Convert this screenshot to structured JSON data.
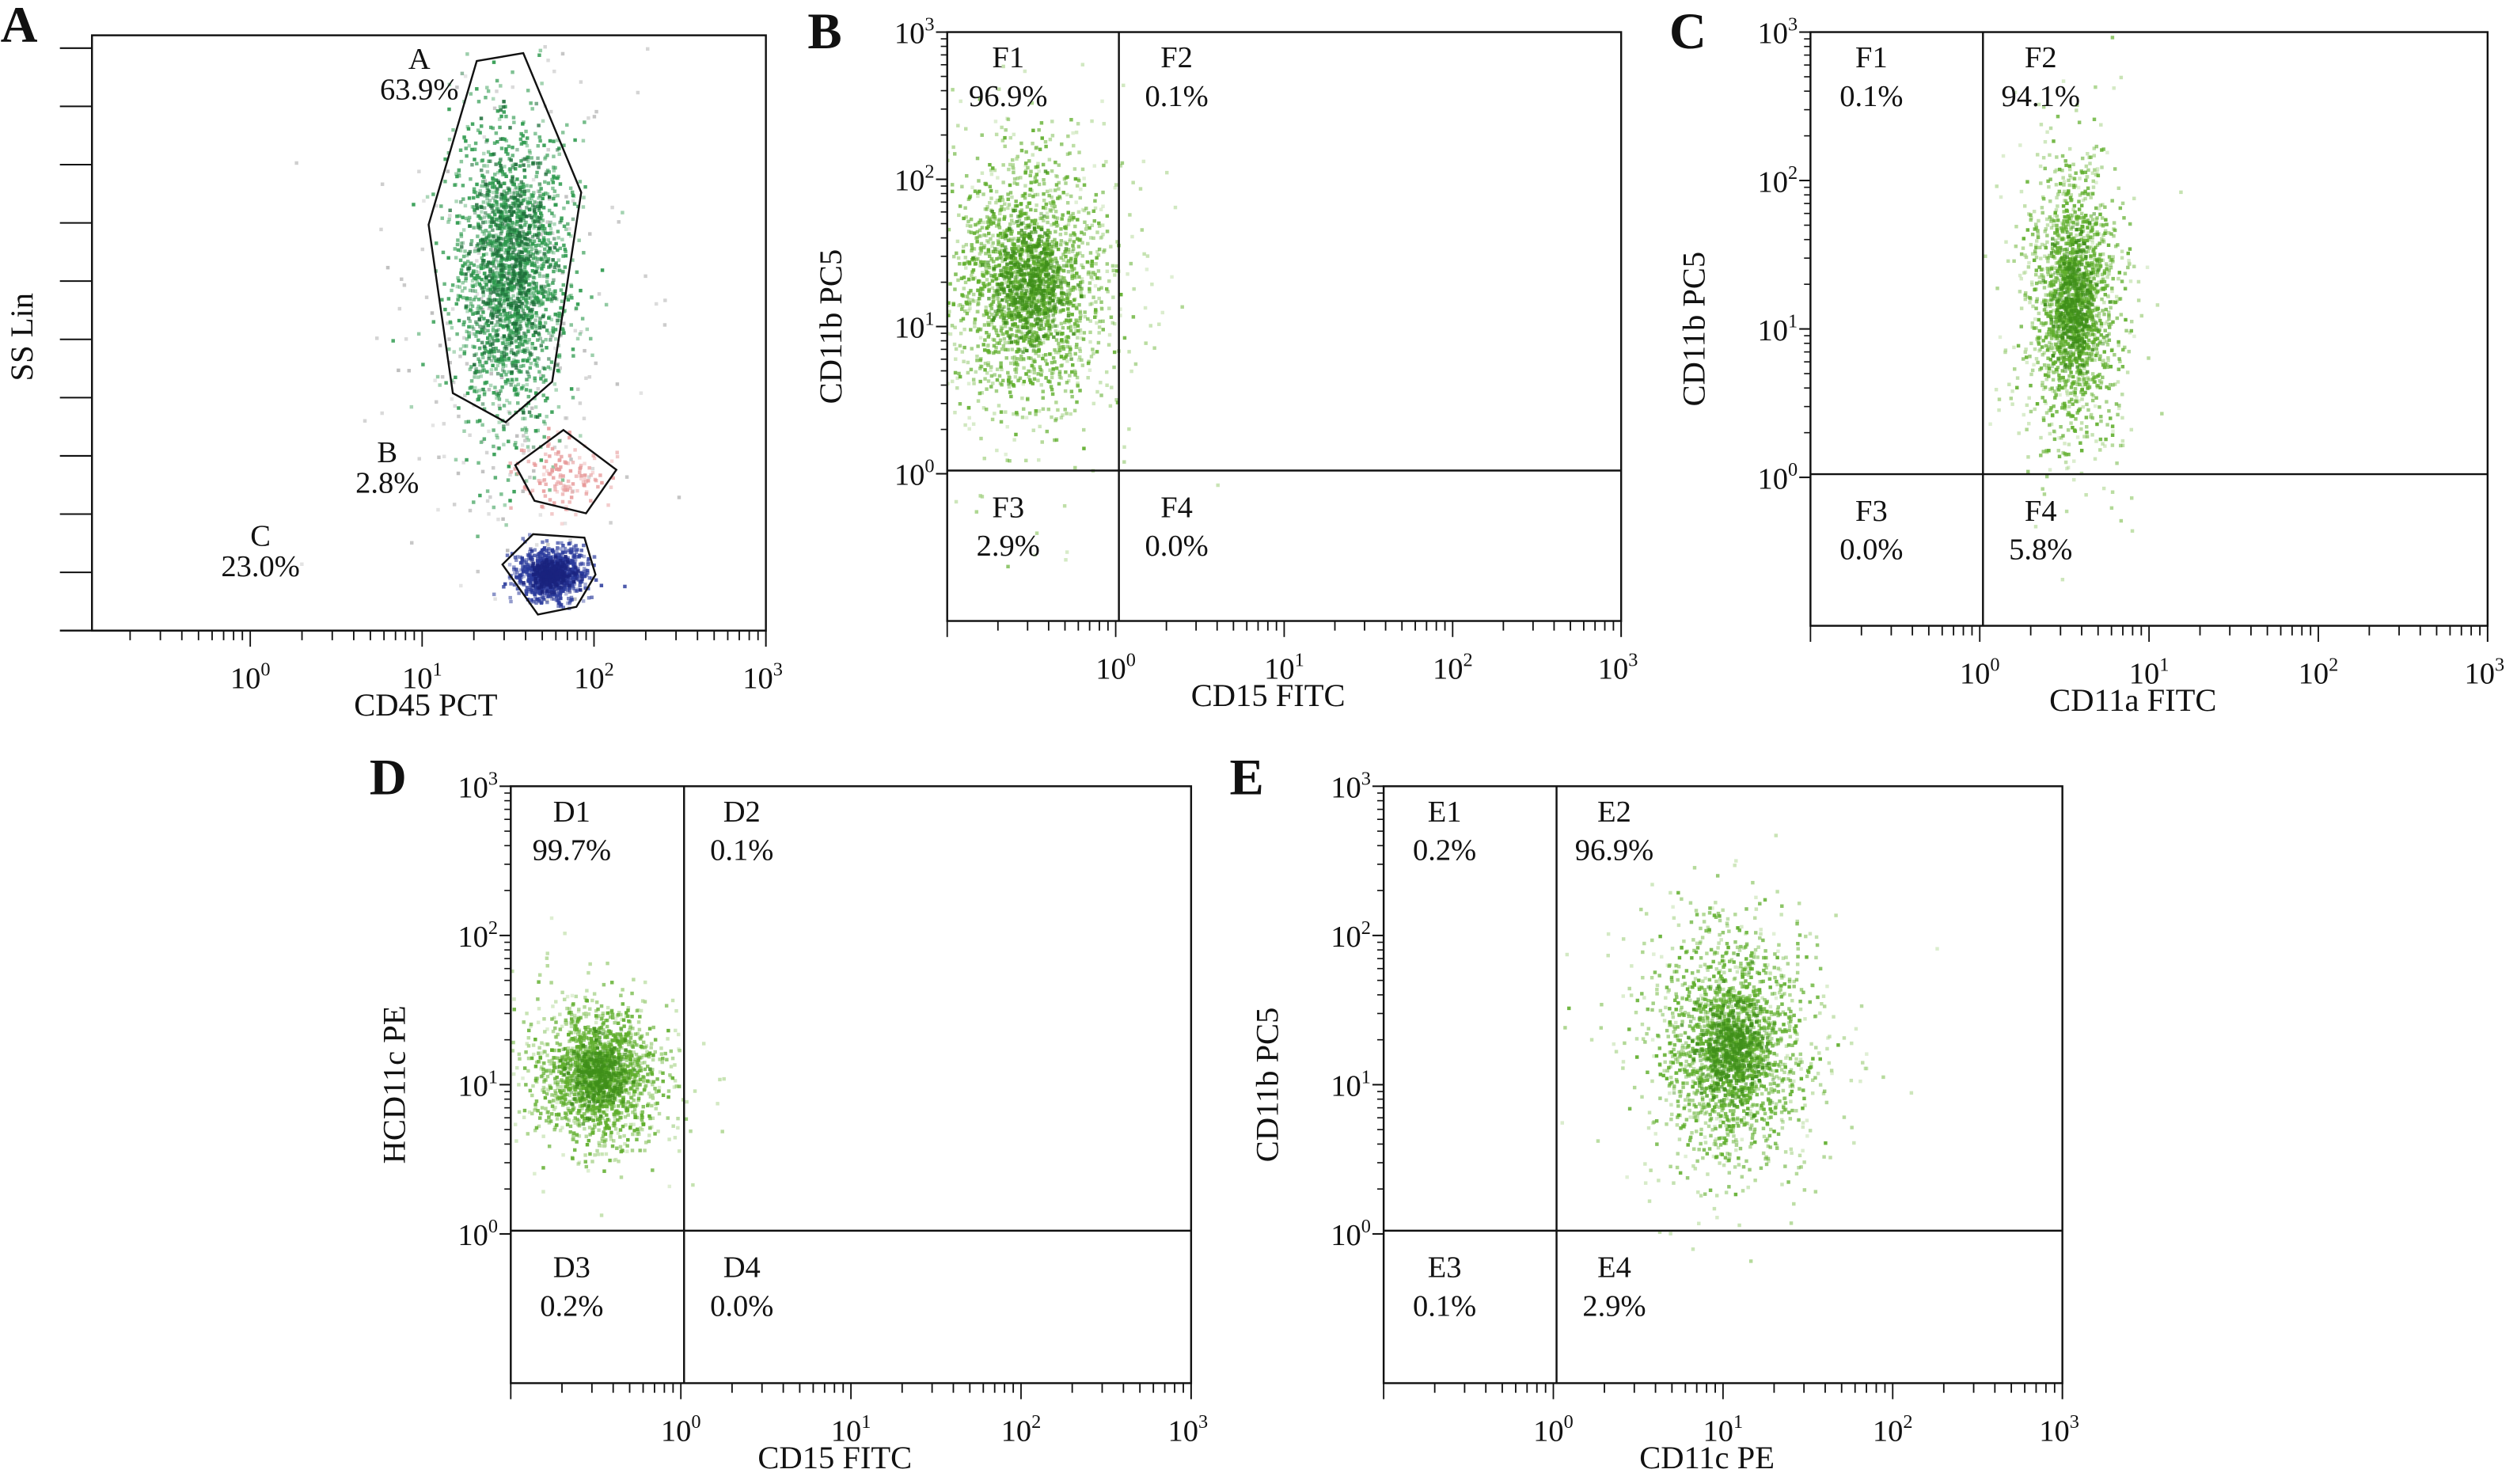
{
  "chart_data": [
    {
      "type": "scatter",
      "panel_letter": "A",
      "xlabel": "CD45 PCT",
      "ylabel": "SS Lin",
      "x_scale": "log",
      "y_scale": "linear",
      "xlim": [
        0.12,
        1000
      ],
      "x_ticks": [
        1,
        10,
        100,
        1000
      ],
      "x_tick_labels": [
        [
          "10",
          "0"
        ],
        [
          "10",
          "1"
        ],
        [
          "10",
          "2"
        ],
        [
          "10",
          "3"
        ]
      ],
      "y_ticks_unlabeled": 10,
      "gates": [
        {
          "name": "A",
          "percent": "63.9%",
          "color": "#2e9a4e",
          "center": [
            32,
            600
          ],
          "spread": [
            0.17,
            130
          ],
          "polygon": [
            [
              20.8,
              957
            ],
            [
              38.8,
              970
            ],
            [
              84.2,
              736
            ],
            [
              57.1,
              418
            ],
            [
              30.6,
              350
            ],
            [
              15.1,
              399
            ],
            [
              10.9,
              682
            ]
          ]
        },
        {
          "name": "B",
          "percent": "2.8%",
          "color": "#e79a9a",
          "center": [
            66,
            264
          ],
          "spread": [
            0.13,
            28
          ],
          "polygon": [
            [
              34.8,
              278
            ],
            [
              66.4,
              337
            ],
            [
              135,
              270
            ],
            [
              89.8,
              197
            ],
            [
              45.1,
              218
            ]
          ]
        },
        {
          "name": "C",
          "percent": "23.0%",
          "color": "#2b3b9c",
          "center": [
            55,
            97
          ],
          "spread": [
            0.1,
            22
          ],
          "polygon": [
            [
              29.3,
              111
            ],
            [
              44.2,
              162
            ],
            [
              87.9,
              156
            ],
            [
              102,
              94
            ],
            [
              78.9,
              40
            ],
            [
              47.1,
              27
            ]
          ]
        }
      ]
    },
    {
      "type": "scatter",
      "panel_letter": "B",
      "xlabel": "CD15 FITC",
      "ylabel": "CD11b PC5",
      "x_scale": "log",
      "y_scale": "log",
      "xlim": [
        0.1,
        1000
      ],
      "ylim": [
        0.1,
        1000
      ],
      "x_ticks": [
        1,
        10,
        100,
        1000
      ],
      "x_tick_labels": [
        [
          "10",
          "0"
        ],
        [
          "10",
          "1"
        ],
        [
          "10",
          "2"
        ],
        [
          "10",
          "3"
        ]
      ],
      "y_ticks": [
        1,
        10,
        100,
        1000
      ],
      "y_tick_labels": [
        [
          "10",
          "0"
        ],
        [
          "10",
          "1"
        ],
        [
          "10",
          "2"
        ],
        [
          "10",
          "3"
        ]
      ],
      "quadrant_threshold": [
        1,
        1
      ],
      "quadrants": [
        {
          "name": "F1",
          "percent": "96.9%"
        },
        {
          "name": "F2",
          "percent": "0.1%"
        },
        {
          "name": "F3",
          "percent": "2.9%"
        },
        {
          "name": "F4",
          "percent": "0.0%"
        }
      ],
      "population": {
        "center": [
          0.3,
          20
        ],
        "spread": [
          0.22,
          0.4
        ],
        "color": "#5fae2c"
      }
    },
    {
      "type": "scatter",
      "panel_letter": "C",
      "xlabel": "CD11a FITC",
      "ylabel": "CD11b PC5",
      "x_scale": "log",
      "y_scale": "log",
      "xlim": [
        0.1,
        1000
      ],
      "ylim": [
        0.1,
        1000
      ],
      "x_ticks": [
        1,
        10,
        100,
        1000
      ],
      "x_tick_labels": [
        [
          "10",
          "0"
        ],
        [
          "10",
          "1"
        ],
        [
          "10",
          "2"
        ],
        [
          "10",
          "3"
        ]
      ],
      "y_ticks": [
        1,
        10,
        100,
        1000
      ],
      "y_tick_labels": [
        [
          "10",
          "0"
        ],
        [
          "10",
          "1"
        ],
        [
          "10",
          "2"
        ],
        [
          "10",
          "3"
        ]
      ],
      "quadrant_threshold": [
        1,
        1
      ],
      "quadrants": [
        {
          "name": "F1",
          "percent": "0.1%"
        },
        {
          "name": "F2",
          "percent": "94.1%"
        },
        {
          "name": "F3",
          "percent": "0.0%"
        },
        {
          "name": "F4",
          "percent": "5.8%"
        }
      ],
      "population": {
        "center": [
          3.5,
          15
        ],
        "spread": [
          0.12,
          0.42
        ],
        "color": "#5fae2c"
      }
    },
    {
      "type": "scatter",
      "panel_letter": "D",
      "xlabel": "CD15 FITC",
      "ylabel": "HCD11c PE",
      "x_scale": "log",
      "y_scale": "log",
      "xlim": [
        0.1,
        1000
      ],
      "ylim": [
        0.1,
        1000
      ],
      "x_ticks": [
        1,
        10,
        100,
        1000
      ],
      "x_tick_labels": [
        [
          "10",
          "0"
        ],
        [
          "10",
          "1"
        ],
        [
          "10",
          "2"
        ],
        [
          "10",
          "3"
        ]
      ],
      "y_ticks": [
        1,
        10,
        100,
        1000
      ],
      "y_tick_labels": [
        [
          "10",
          "0"
        ],
        [
          "10",
          "1"
        ],
        [
          "10",
          "2"
        ],
        [
          "10",
          "3"
        ]
      ],
      "quadrant_threshold": [
        1,
        1
      ],
      "quadrants": [
        {
          "name": "D1",
          "percent": "99.7%"
        },
        {
          "name": "D2",
          "percent": "0.1%"
        },
        {
          "name": "D3",
          "percent": "0.2%"
        },
        {
          "name": "D4",
          "percent": "0.0%"
        }
      ],
      "population": {
        "center": [
          0.32,
          12
        ],
        "spread": [
          0.17,
          0.22
        ],
        "color": "#5fae2c"
      }
    },
    {
      "type": "scatter",
      "panel_letter": "E",
      "xlabel": "CD11c PE",
      "ylabel": "CD11b PC5",
      "x_scale": "log",
      "y_scale": "log",
      "xlim": [
        0.1,
        1000
      ],
      "ylim": [
        0.1,
        1000
      ],
      "x_ticks": [
        1,
        10,
        100,
        1000
      ],
      "x_tick_labels": [
        [
          "10",
          "0"
        ],
        [
          "10",
          "1"
        ],
        [
          "10",
          "2"
        ],
        [
          "10",
          "3"
        ]
      ],
      "y_ticks": [
        1,
        10,
        100,
        1000
      ],
      "y_tick_labels": [
        [
          "10",
          "0"
        ],
        [
          "10",
          "1"
        ],
        [
          "10",
          "2"
        ],
        [
          "10",
          "3"
        ]
      ],
      "quadrant_threshold": [
        1,
        1
      ],
      "quadrants": [
        {
          "name": "E1",
          "percent": "0.2%"
        },
        {
          "name": "E2",
          "percent": "96.9%"
        },
        {
          "name": "E3",
          "percent": "0.1%"
        },
        {
          "name": "E4",
          "percent": "2.9%"
        }
      ],
      "population": {
        "center": [
          11,
          18
        ],
        "spread": [
          0.2,
          0.35
        ],
        "color": "#5fae2c"
      }
    }
  ]
}
